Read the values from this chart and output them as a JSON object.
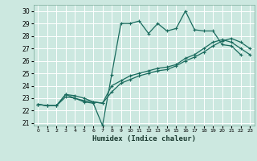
{
  "title": "",
  "xlabel": "Humidex (Indice chaleur)",
  "bg_color": "#cce8e0",
  "grid_color": "#ffffff",
  "line_color": "#1a6b5e",
  "xlim": [
    -0.5,
    23.5
  ],
  "ylim": [
    20.8,
    30.5
  ],
  "yticks": [
    21,
    22,
    23,
    24,
    25,
    26,
    27,
    28,
    29,
    30
  ],
  "xticks": [
    0,
    1,
    2,
    3,
    4,
    5,
    6,
    7,
    8,
    9,
    10,
    11,
    12,
    13,
    14,
    15,
    16,
    17,
    18,
    19,
    20,
    21,
    22,
    23
  ],
  "series1": [
    22.5,
    22.4,
    22.4,
    23.3,
    23.0,
    22.7,
    22.6,
    20.8,
    24.9,
    29.0,
    29.0,
    29.2,
    28.2,
    29.0,
    28.4,
    28.6,
    30.0,
    28.5,
    28.4,
    28.4,
    27.3,
    27.2,
    26.5,
    null
  ],
  "series2": [
    22.5,
    22.4,
    22.4,
    23.3,
    23.2,
    23.0,
    22.7,
    22.6,
    24.0,
    24.4,
    24.8,
    25.0,
    25.2,
    25.4,
    25.5,
    25.7,
    26.2,
    26.5,
    27.0,
    27.5,
    27.7,
    27.5,
    27.0,
    26.5
  ],
  "series3": [
    22.5,
    22.4,
    22.4,
    23.1,
    23.0,
    22.8,
    22.7,
    22.6,
    23.5,
    24.2,
    24.5,
    24.8,
    25.0,
    25.2,
    25.3,
    25.6,
    26.0,
    26.3,
    26.7,
    27.2,
    27.6,
    27.8,
    27.5,
    27.0
  ]
}
